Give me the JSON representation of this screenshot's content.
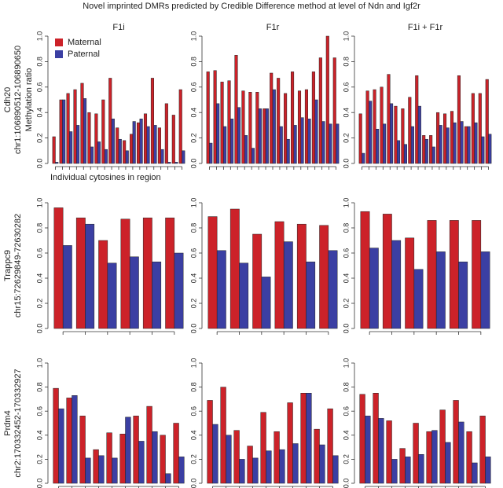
{
  "title": "Novel imprinted DMRs predicted by Credible Difference method at level of Ndn and Igf2r",
  "chart_data": [
    {
      "type": "bar",
      "title": "F1i",
      "row_label": [
        "Cdh20",
        "chr1:106890512-106890650"
      ],
      "ylabel": "Methylation ratio",
      "xlabel": "Individual cytosines in region",
      "legend": "upper left",
      "ylim": [
        0,
        1
      ],
      "yticks": [
        {
          "value": 0,
          "label": "0.0"
        },
        0.2,
        0.4,
        0.6,
        0.8,
        {
          "value": 1,
          "label": "1.0"
        }
      ],
      "series": [
        {
          "name": "Maternal",
          "color": "#cc2229",
          "values": [
            0.21,
            0.5,
            0.55,
            0.58,
            0.63,
            0.4,
            0.39,
            0.5,
            0.67,
            0.28,
            0.18,
            0.23,
            0.32,
            0.39,
            0.67,
            0.28,
            0.47,
            0.38,
            0.58
          ]
        },
        {
          "name": "Paternal",
          "color": "#3b3fa3",
          "values": [
            0.01,
            0.5,
            0.25,
            0.3,
            0.51,
            0.13,
            0.17,
            0.11,
            0.35,
            0.19,
            0.1,
            0.33,
            0.35,
            0.29,
            0.3,
            0.11,
            0.01,
            0.01,
            0.1
          ]
        }
      ]
    },
    {
      "type": "bar",
      "title": "F1r",
      "ylim": [
        0,
        1
      ],
      "yticks": [
        {
          "value": 0,
          "label": "0.0"
        },
        0.2,
        0.4,
        0.6,
        0.8,
        {
          "value": 1,
          "label": "1.0"
        }
      ],
      "series": [
        {
          "color": "#cc2229",
          "values": [
            0.72,
            0.73,
            0.64,
            0.65,
            0.85,
            0.57,
            0.56,
            0.56,
            0.43,
            0.71,
            0.67,
            0.55,
            0.72,
            0.57,
            0.58,
            0.72,
            0.83,
            1.0,
            0.83
          ]
        },
        {
          "color": "#3b3fa3",
          "values": [
            0.16,
            0.47,
            0.29,
            0.35,
            0.44,
            0.22,
            0.12,
            0.43,
            0.43,
            0.58,
            0.29,
            0.19,
            0.3,
            0.36,
            0.35,
            0.5,
            0.33,
            0.31,
            0.31
          ]
        }
      ]
    },
    {
      "type": "bar",
      "title": "F1i + F1r",
      "ylim": [
        0,
        1
      ],
      "yticks": [
        {
          "value": 0,
          "label": "0.0"
        },
        0.2,
        0.4,
        0.6,
        0.8,
        {
          "value": 1,
          "label": "1.0"
        }
      ],
      "series": [
        {
          "color": "#cc2229",
          "values": [
            0.39,
            0.57,
            0.58,
            0.6,
            0.7,
            0.45,
            0.43,
            0.52,
            0.69,
            0.22,
            0.22,
            0.4,
            0.39,
            0.41,
            0.69,
            0.29,
            0.55,
            0.55,
            0.66
          ]
        },
        {
          "color": "#3b3fa3",
          "values": [
            0.08,
            0.49,
            0.27,
            0.31,
            0.47,
            0.18,
            0.15,
            0.29,
            0.45,
            0.19,
            0.13,
            0.3,
            0.28,
            0.32,
            0.33,
            0.29,
            0.32,
            0.21,
            0.23
          ]
        }
      ]
    },
    {
      "type": "bar",
      "row_label": [
        "Trappc9",
        "chr15:72629849-72630282"
      ],
      "ylim": [
        0,
        1
      ],
      "yticks": [
        {
          "value": 0,
          "label": "0.0"
        },
        0.2,
        0.4,
        0.6,
        0.8,
        {
          "value": 1,
          "label": "1.0"
        }
      ],
      "series": [
        {
          "color": "#cc2229",
          "values": [
            0.96,
            0.88,
            0.7,
            0.87,
            0.88,
            0.88
          ]
        },
        {
          "color": "#3b3fa3",
          "values": [
            0.66,
            0.83,
            0.52,
            0.57,
            0.53,
            0.6
          ]
        }
      ]
    },
    {
      "type": "bar",
      "ylim": [
        0,
        1
      ],
      "yticks": [
        {
          "value": 0,
          "label": "0.0"
        },
        0.2,
        0.4,
        0.6,
        0.8,
        {
          "value": 1,
          "label": "1.0"
        }
      ],
      "series": [
        {
          "color": "#cc2229",
          "values": [
            0.89,
            0.95,
            0.75,
            0.85,
            0.83,
            0.82
          ]
        },
        {
          "color": "#3b3fa3",
          "values": [
            0.62,
            0.52,
            0.41,
            0.69,
            0.53,
            0.62
          ]
        }
      ]
    },
    {
      "type": "bar",
      "ylim": [
        0,
        1
      ],
      "yticks": [
        {
          "value": 0,
          "label": "0.0"
        },
        0.2,
        0.4,
        0.6,
        0.8,
        {
          "value": 1,
          "label": "1.0"
        }
      ],
      "series": [
        {
          "color": "#cc2229",
          "values": [
            0.93,
            0.91,
            0.72,
            0.86,
            0.86,
            0.86
          ]
        },
        {
          "color": "#3b3fa3",
          "values": [
            0.64,
            0.7,
            0.47,
            0.61,
            0.53,
            0.61
          ]
        }
      ]
    },
    {
      "type": "bar",
      "row_label": [
        "Prdm4",
        "chr2:170332452-170332927"
      ],
      "ylim": [
        0,
        1
      ],
      "yticks": [
        {
          "value": 0,
          "label": "0.0"
        },
        0.2,
        0.4,
        0.6,
        0.8,
        {
          "value": 1,
          "label": "1.0"
        }
      ],
      "series": [
        {
          "color": "#cc2229",
          "values": [
            0.79,
            0.71,
            0.56,
            0.28,
            0.42,
            0.41,
            0.56,
            0.64,
            0.4,
            0.5
          ]
        },
        {
          "color": "#3b3fa3",
          "values": [
            0.62,
            0.73,
            0.21,
            0.23,
            0.21,
            0.55,
            0.35,
            0.43,
            0.08,
            0.22
          ]
        }
      ]
    },
    {
      "type": "bar",
      "ylim": [
        0,
        1
      ],
      "yticks": [
        {
          "value": 0,
          "label": "0.0"
        },
        0.2,
        0.4,
        0.6,
        0.8,
        {
          "value": 1,
          "label": "1.0"
        }
      ],
      "series": [
        {
          "color": "#cc2229",
          "values": [
            0.69,
            0.8,
            0.44,
            0.31,
            0.59,
            0.43,
            0.67,
            0.75,
            0.45,
            0.62
          ]
        },
        {
          "color": "#3b3fa3",
          "values": [
            0.49,
            0.4,
            0.2,
            0.21,
            0.27,
            0.28,
            0.33,
            0.75,
            0.32,
            0.23
          ]
        }
      ]
    },
    {
      "type": "bar",
      "ylim": [
        0,
        1
      ],
      "yticks": [
        {
          "value": 0,
          "label": "0.0"
        },
        0.2,
        0.4,
        0.6,
        0.8,
        {
          "value": 1,
          "label": "1.0"
        }
      ],
      "series": [
        {
          "color": "#cc2229",
          "values": [
            0.74,
            0.75,
            0.52,
            0.29,
            0.5,
            0.43,
            0.61,
            0.69,
            0.43,
            0.56
          ]
        },
        {
          "color": "#3b3fa3",
          "values": [
            0.56,
            0.54,
            0.2,
            0.22,
            0.24,
            0.44,
            0.34,
            0.51,
            0.17,
            0.22
          ]
        }
      ]
    }
  ]
}
